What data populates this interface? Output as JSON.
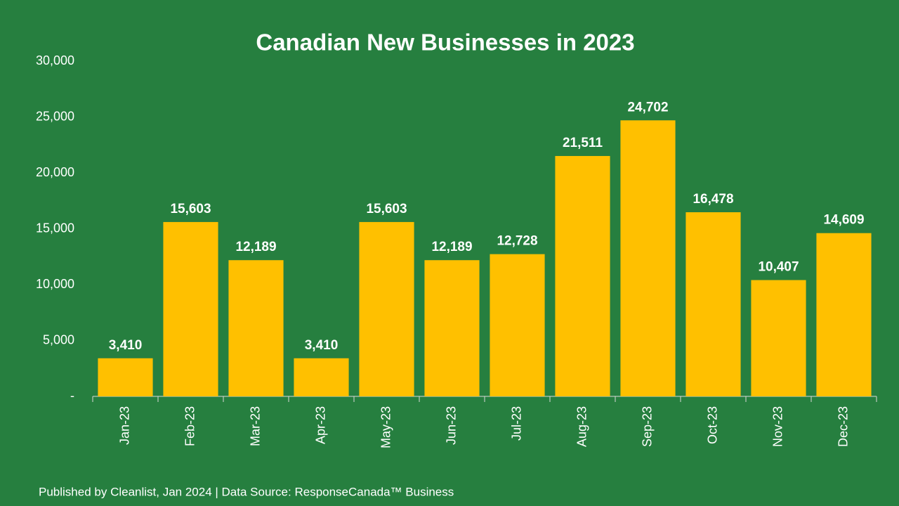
{
  "chart_data": {
    "type": "bar",
    "title": "Canadian New Businesses in 2023",
    "source": "Published by Cleanlist, Jan 2024 | Data Source: ResponseCanada™ Business",
    "categories": [
      "Jan-23",
      "Feb-23",
      "Mar-23",
      "Apr-23",
      "May-23",
      "Jun-23",
      "Jul-23",
      "Aug-23",
      "Sep-23",
      "Oct-23",
      "Nov-23",
      "Dec-23"
    ],
    "values": [
      3410,
      15603,
      12189,
      3410,
      15603,
      12189,
      12728,
      21511,
      24702,
      16478,
      10407,
      14609
    ],
    "value_labels": [
      "3,410",
      "15,603",
      "12,189",
      "3,410",
      "15,603",
      "12,189",
      "12,728",
      "21,511",
      "24,702",
      "16,478",
      "10,407",
      "14,609"
    ],
    "color": "#ffc000",
    "ylim": [
      0,
      30000
    ],
    "yticks": [
      {
        "value": 0,
        "label": "-"
      },
      {
        "value": 5000,
        "label": "5,000"
      },
      {
        "value": 10000,
        "label": "10,000"
      },
      {
        "value": 15000,
        "label": "15,000"
      },
      {
        "value": 20000,
        "label": "20,000"
      },
      {
        "value": 25000,
        "label": "25,000"
      },
      {
        "value": 30000,
        "label": "30,000"
      }
    ],
    "grid": false
  }
}
